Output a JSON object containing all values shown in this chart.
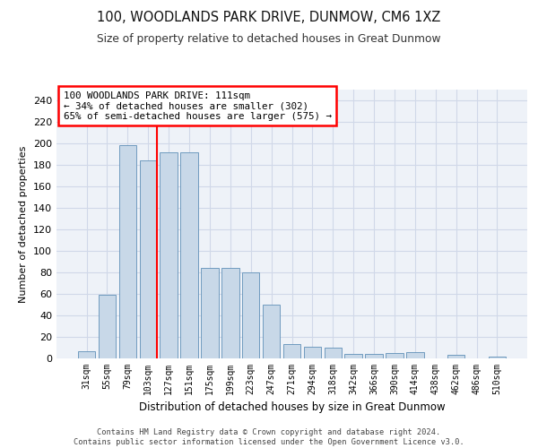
{
  "title": "100, WOODLANDS PARK DRIVE, DUNMOW, CM6 1XZ",
  "subtitle": "Size of property relative to detached houses in Great Dunmow",
  "xlabel": "Distribution of detached houses by size in Great Dunmow",
  "ylabel": "Number of detached properties",
  "categories": [
    "31sqm",
    "55sqm",
    "79sqm",
    "103sqm",
    "127sqm",
    "151sqm",
    "175sqm",
    "199sqm",
    "223sqm",
    "247sqm",
    "271sqm",
    "294sqm",
    "318sqm",
    "342sqm",
    "366sqm",
    "390sqm",
    "414sqm",
    "438sqm",
    "462sqm",
    "486sqm",
    "510sqm"
  ],
  "values": [
    7,
    59,
    198,
    184,
    192,
    192,
    84,
    84,
    80,
    50,
    13,
    11,
    10,
    4,
    4,
    5,
    6,
    0,
    3,
    0,
    2
  ],
  "bar_color": "#c8d8e8",
  "bar_edge_color": "#6090b8",
  "grid_color": "#d0d8e8",
  "background_color": "#eef2f8",
  "annotation_text": "100 WOODLANDS PARK DRIVE: 111sqm\n← 34% of detached houses are smaller (302)\n65% of semi-detached houses are larger (575) →",
  "red_line_bin_index": 3,
  "footnote_line1": "Contains HM Land Registry data © Crown copyright and database right 2024.",
  "footnote_line2": "Contains public sector information licensed under the Open Government Licence v3.0.",
  "ylim": [
    0,
    250
  ],
  "yticks": [
    0,
    20,
    40,
    60,
    80,
    100,
    120,
    140,
    160,
    180,
    200,
    220,
    240
  ]
}
